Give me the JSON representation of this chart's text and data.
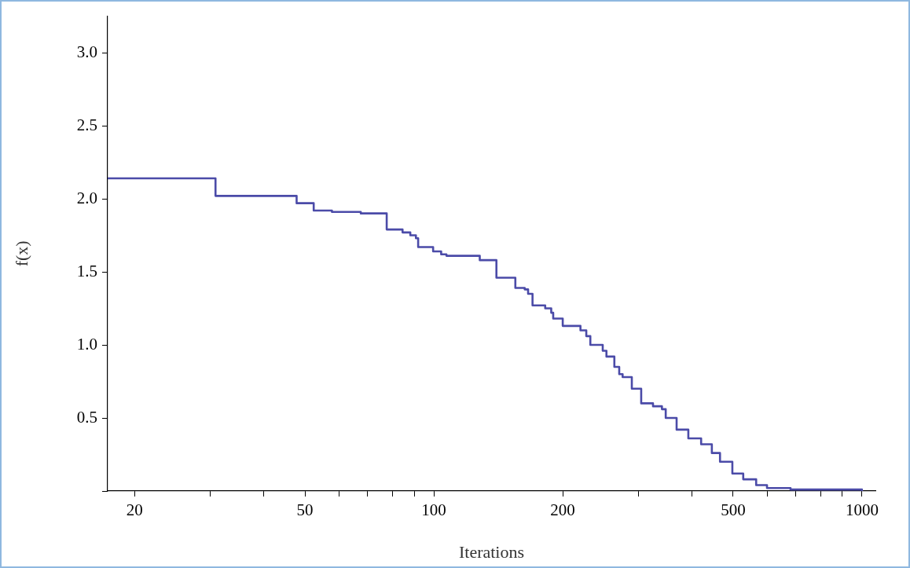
{
  "chart_data": {
    "type": "step",
    "xlabel": "Iterations",
    "ylabel": "f(x)",
    "log": "x",
    "grid": false,
    "marker": "none",
    "line_style": "solid",
    "xlim": [
      17.3,
      1075
    ],
    "xticks": [
      20,
      {
        "value": 30,
        "label": null
      },
      {
        "value": 40,
        "label": null
      },
      50,
      {
        "value": 60,
        "label": null
      },
      {
        "value": 70,
        "label": null
      },
      {
        "value": 80,
        "label": null
      },
      {
        "value": 90,
        "label": null
      },
      100,
      200,
      {
        "value": 300,
        "label": null
      },
      {
        "value": 400,
        "label": null
      },
      500,
      {
        "value": 600,
        "label": null
      },
      {
        "value": 700,
        "label": null
      },
      {
        "value": 800,
        "label": null
      },
      {
        "value": 900,
        "label": null
      },
      1000
    ],
    "ylim": [
      0,
      3.25
    ],
    "yticks": [
      {
        "value": 0,
        "label": null
      },
      0.5,
      {
        "value": 1,
        "label": "1.0"
      },
      1.5,
      {
        "value": 2,
        "label": "2.0"
      },
      2.5,
      {
        "value": 3,
        "label": "3.0"
      }
    ],
    "series": [
      {
        "color": "#4b4ba8",
        "x": [
          17.3,
          30.9,
          47.8,
          52.4,
          57.8,
          67.5,
          77.6,
          84.5,
          88.1,
          90.8,
          91.9,
          99.6,
          104,
          107,
          128,
          140,
          155,
          163,
          166,
          170,
          182,
          188,
          190,
          200,
          220,
          227,
          232,
          248,
          253,
          264,
          271,
          276,
          290,
          305,
          325,
          341,
          348,
          369,
          393,
          421,
          446,
          466,
          498,
          528,
          566,
          600,
          681,
          1000
        ],
        "values": [
          2.14,
          2.02,
          1.97,
          1.92,
          1.91,
          1.9,
          1.79,
          1.77,
          1.75,
          1.73,
          1.67,
          1.64,
          1.62,
          1.61,
          1.58,
          1.46,
          1.39,
          1.38,
          1.35,
          1.27,
          1.25,
          1.22,
          1.18,
          1.13,
          1.1,
          1.06,
          1.0,
          0.96,
          0.92,
          0.85,
          0.8,
          0.78,
          0.7,
          0.6,
          0.58,
          0.56,
          0.5,
          0.42,
          0.36,
          0.32,
          0.26,
          0.2,
          0.12,
          0.08,
          0.04,
          0.02,
          0.01,
          0
        ]
      }
    ]
  }
}
